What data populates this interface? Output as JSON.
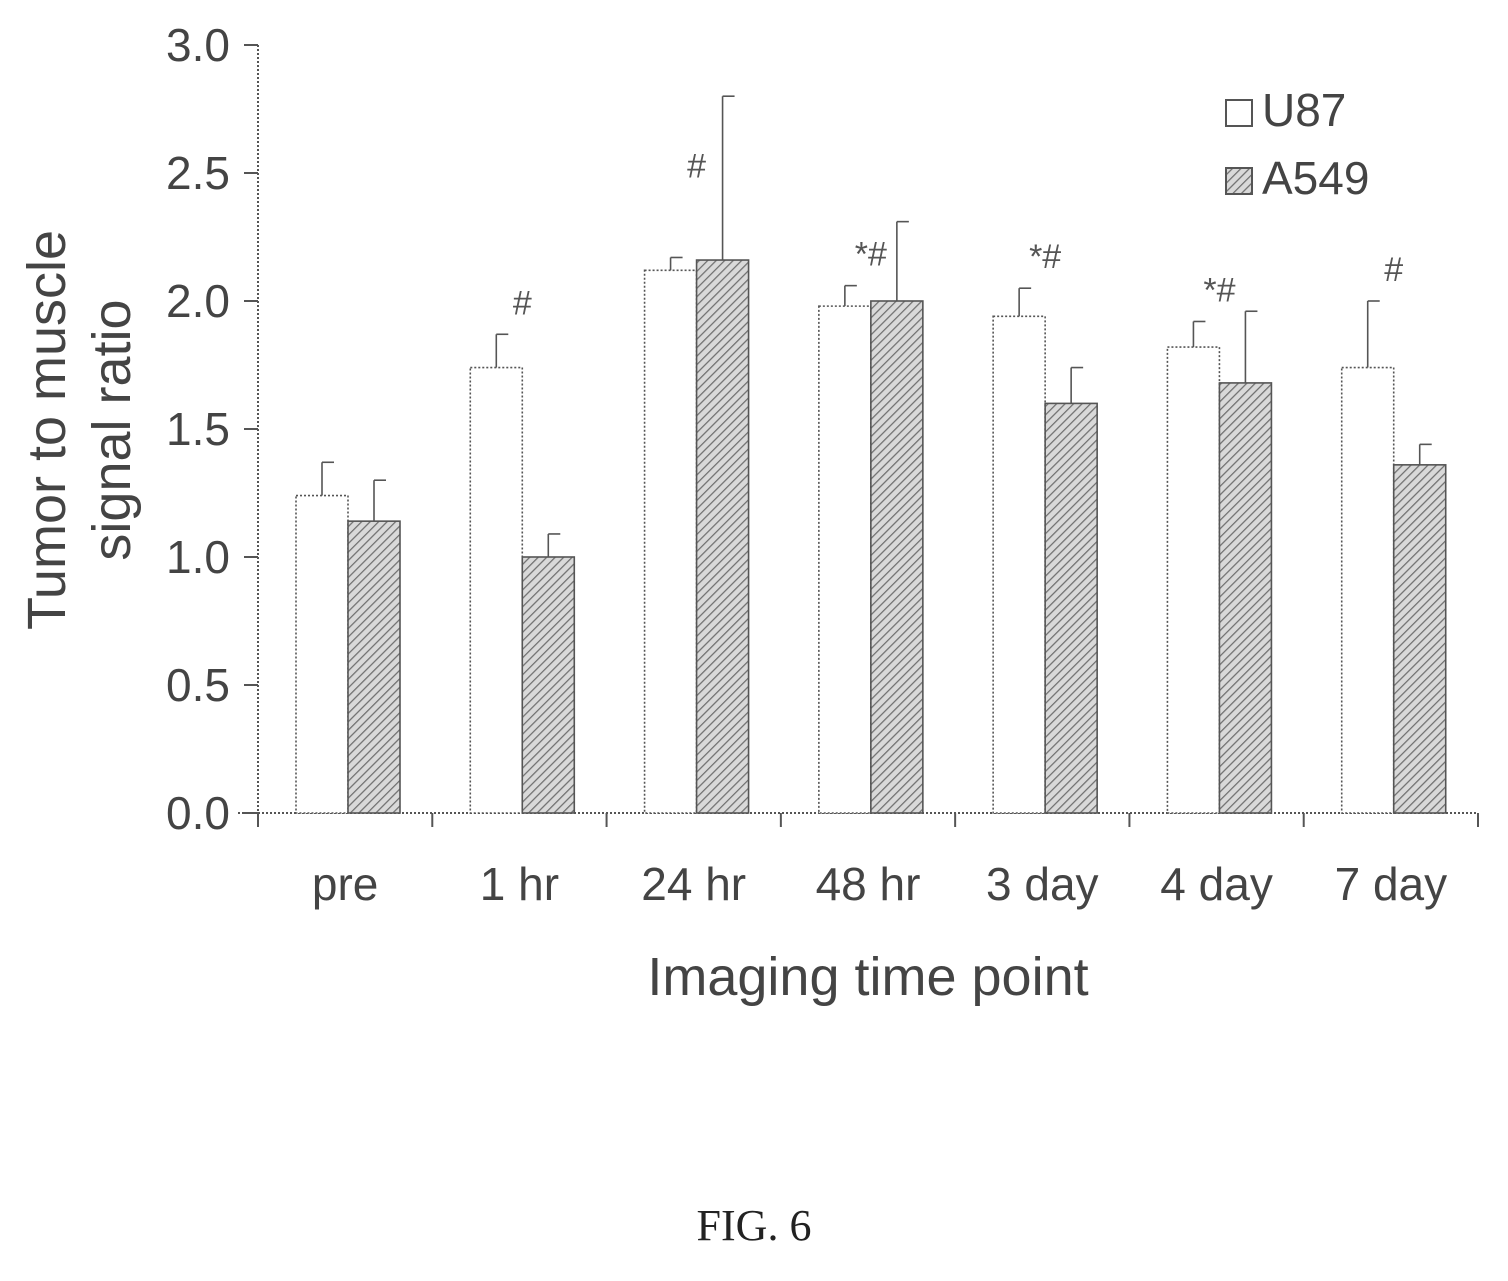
{
  "chart_data": {
    "type": "bar",
    "xlabel": "Imaging time point",
    "ylabel_lines": [
      "Tumor to muscle",
      "signal ratio"
    ],
    "categories": [
      "pre",
      "1 hr",
      "24 hr",
      "48 hr",
      "3 day",
      "4 day",
      "7 day"
    ],
    "ylim": [
      0,
      3.0
    ],
    "yticks": [
      "0.0",
      "0.5",
      "1.0",
      "1.5",
      "2.0",
      "2.5",
      "3.0"
    ],
    "legend_position": "top-right",
    "series": [
      {
        "name": "U87",
        "fill": "open",
        "values": [
          1.24,
          1.74,
          2.12,
          1.98,
          1.94,
          1.82,
          1.74
        ],
        "errors": [
          0.13,
          0.13,
          0.05,
          0.08,
          0.11,
          0.1,
          0.26
        ]
      },
      {
        "name": "A549",
        "fill": "hatched",
        "values": [
          1.14,
          1.0,
          2.16,
          2.0,
          1.6,
          1.68,
          1.36
        ],
        "errors": [
          0.16,
          0.09,
          0.64,
          0.31,
          0.14,
          0.28,
          0.08
        ]
      }
    ],
    "annotations": [
      "",
      "#",
      "#",
      "*#",
      "*#",
      "*#",
      "#"
    ]
  },
  "figure_label": "FIG. 6",
  "colors": {
    "ink": "#555555",
    "hatch": "#7a7a7a",
    "background": "#ffffff"
  }
}
